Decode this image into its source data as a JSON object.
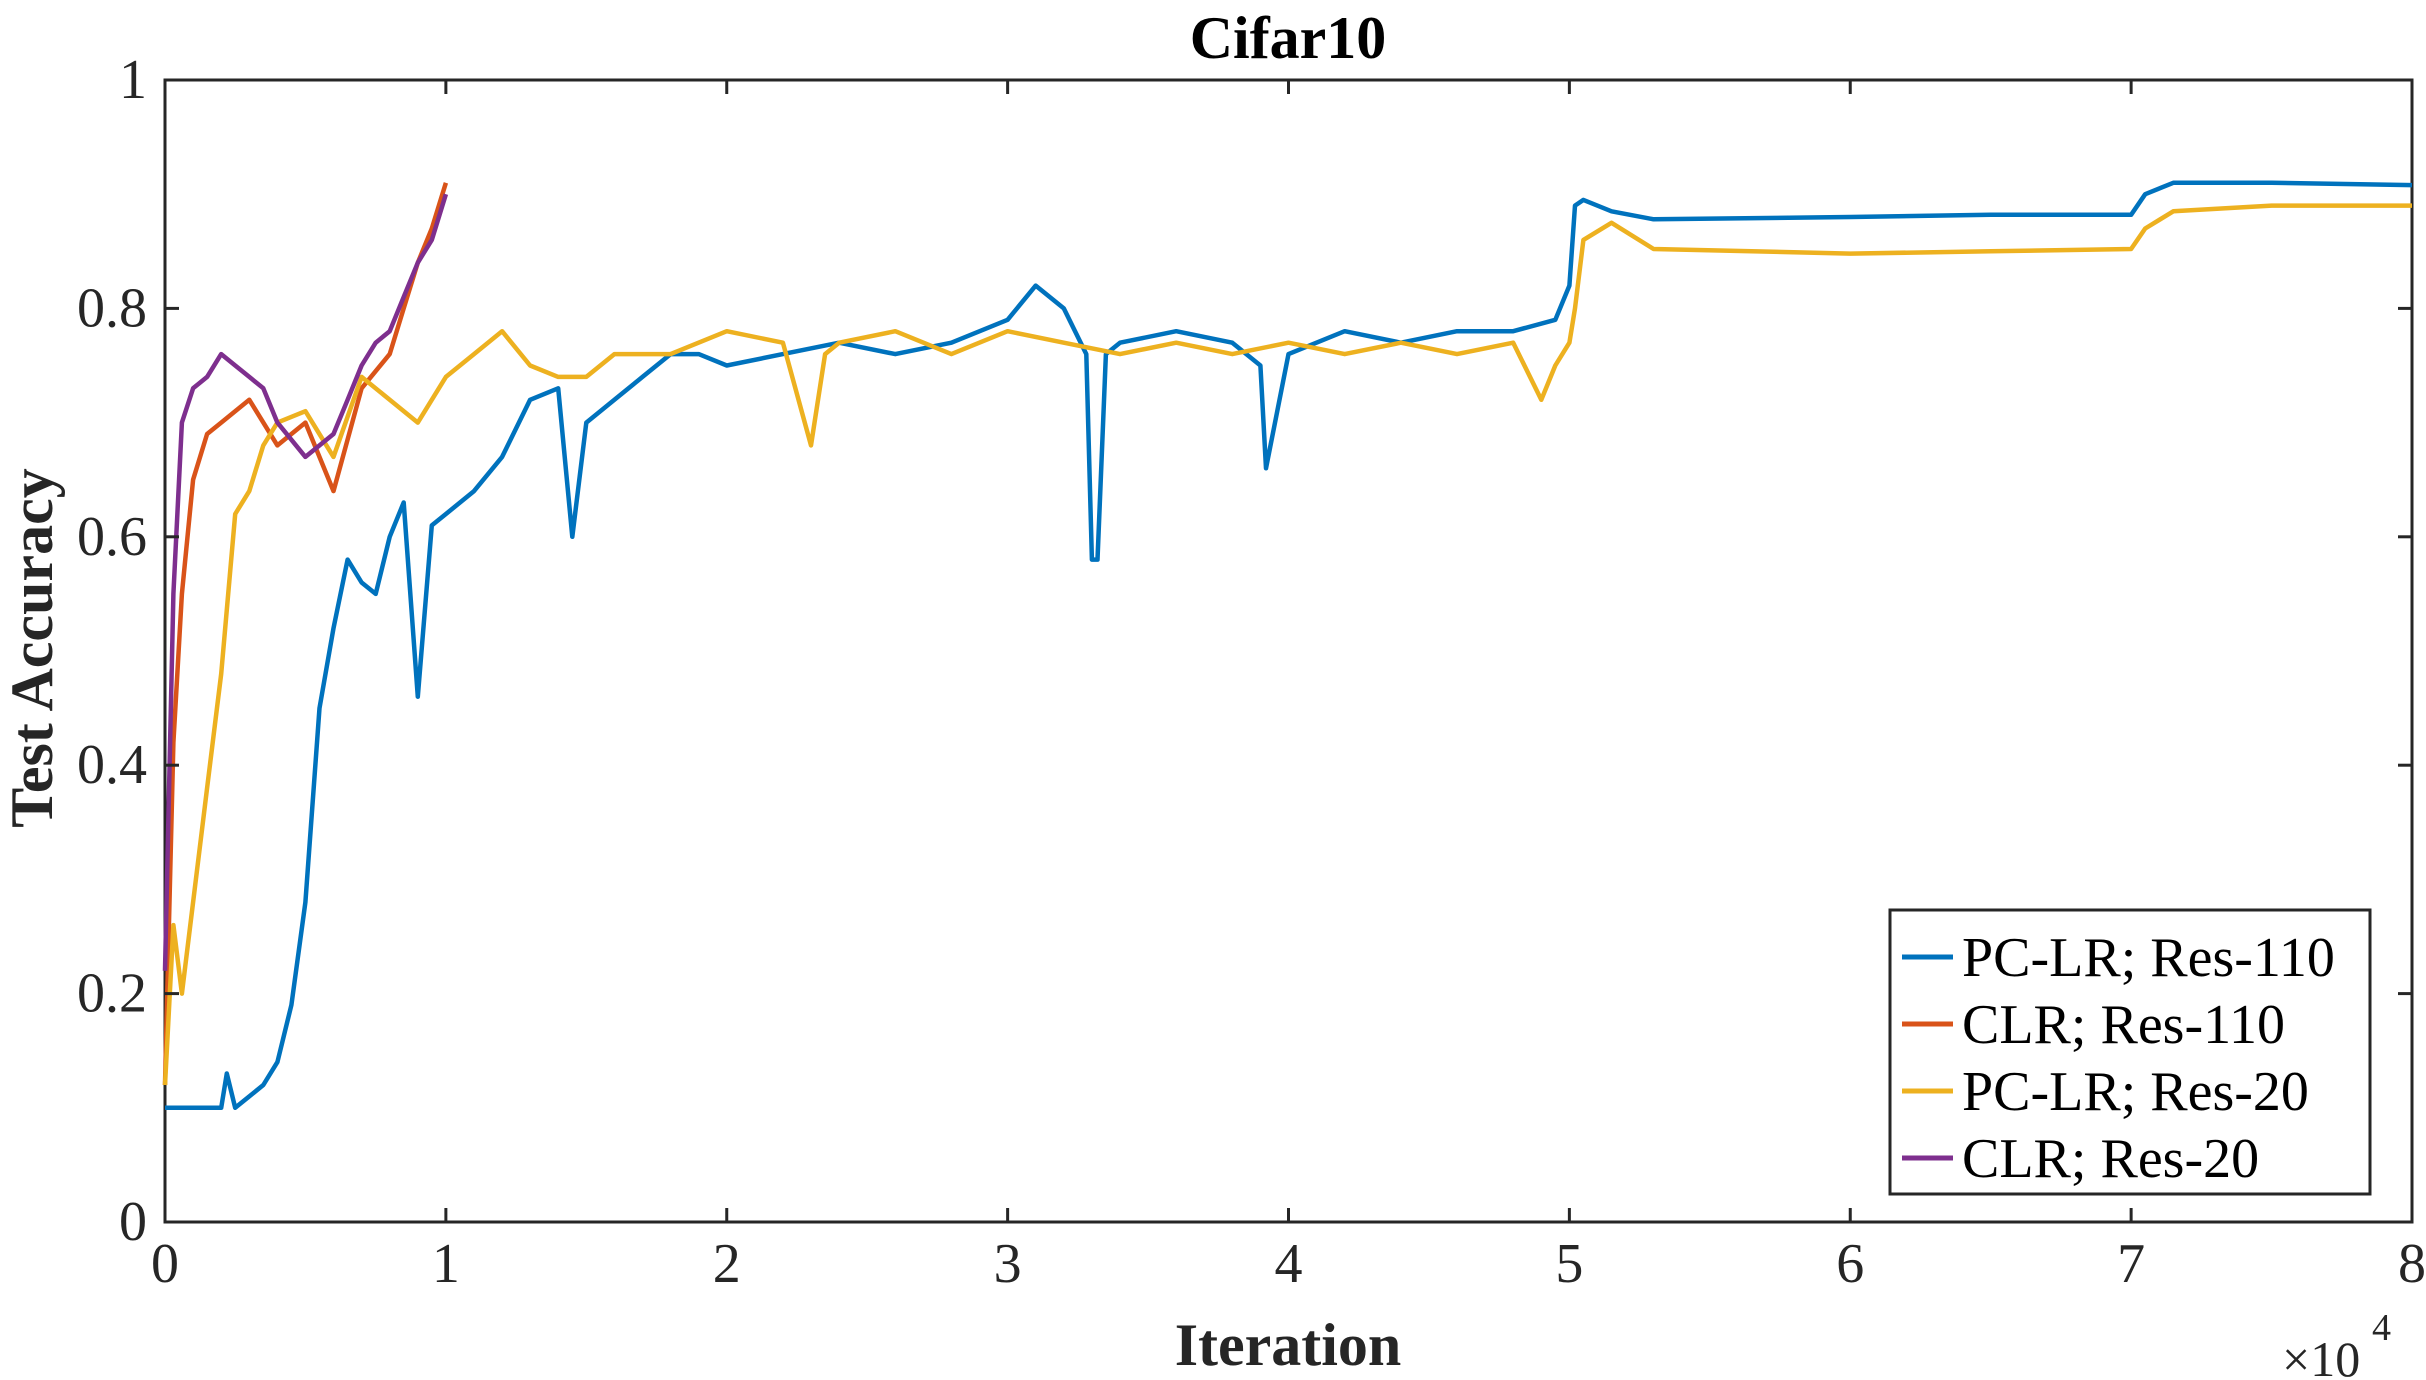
{
  "chart_data": {
    "type": "line",
    "title": "Cifar10",
    "xlabel": "Iteration",
    "ylabel": "Test Accuracy",
    "x_multiplier_label": "×10",
    "x_multiplier_exp": "4",
    "xlim": [
      0,
      8
    ],
    "ylim": [
      0,
      1
    ],
    "x_ticks": [
      0,
      1,
      2,
      3,
      4,
      5,
      6,
      7,
      8
    ],
    "x_tick_labels": [
      "0",
      "1",
      "2",
      "3",
      "4",
      "5",
      "6",
      "7",
      "8"
    ],
    "y_ticks": [
      0,
      0.2,
      0.4,
      0.6,
      0.8,
      1
    ],
    "y_tick_labels": [
      "0",
      "0.2",
      "0.4",
      "0.6",
      "0.8",
      "1"
    ],
    "grid": false,
    "legend_position": "bottom-right",
    "series": [
      {
        "name": "PC-LR; Res-110",
        "color": "#0072BD",
        "x": [
          0,
          0.1,
          0.2,
          0.22,
          0.25,
          0.3,
          0.35,
          0.4,
          0.45,
          0.5,
          0.55,
          0.6,
          0.65,
          0.7,
          0.75,
          0.8,
          0.85,
          0.9,
          0.95,
          1.0,
          1.1,
          1.2,
          1.3,
          1.4,
          1.45,
          1.5,
          1.6,
          1.7,
          1.8,
          1.9,
          2.0,
          2.2,
          2.4,
          2.6,
          2.8,
          3.0,
          3.1,
          3.2,
          3.28,
          3.3,
          3.32,
          3.35,
          3.4,
          3.6,
          3.8,
          3.9,
          3.92,
          4.0,
          4.2,
          4.4,
          4.6,
          4.8,
          4.95,
          5.0,
          5.02,
          5.05,
          5.15,
          5.3,
          6.0,
          6.5,
          7.0,
          7.05,
          7.15,
          7.5,
          8.0
        ],
        "y": [
          0.1,
          0.1,
          0.1,
          0.13,
          0.1,
          0.11,
          0.12,
          0.14,
          0.19,
          0.28,
          0.45,
          0.52,
          0.58,
          0.56,
          0.55,
          0.6,
          0.63,
          0.46,
          0.61,
          0.62,
          0.64,
          0.67,
          0.72,
          0.73,
          0.6,
          0.7,
          0.72,
          0.74,
          0.76,
          0.76,
          0.75,
          0.76,
          0.77,
          0.76,
          0.77,
          0.79,
          0.82,
          0.8,
          0.76,
          0.58,
          0.58,
          0.76,
          0.77,
          0.78,
          0.77,
          0.75,
          0.66,
          0.76,
          0.78,
          0.77,
          0.78,
          0.78,
          0.79,
          0.82,
          0.89,
          0.895,
          0.885,
          0.878,
          0.88,
          0.882,
          0.882,
          0.9,
          0.91,
          0.91,
          0.908
        ]
      },
      {
        "name": "CLR; Res-110",
        "color": "#D95319",
        "x": [
          0,
          0.03,
          0.06,
          0.1,
          0.15,
          0.2,
          0.3,
          0.4,
          0.5,
          0.6,
          0.7,
          0.8,
          0.85,
          0.9,
          0.95,
          1.0
        ],
        "y": [
          0.12,
          0.42,
          0.55,
          0.65,
          0.69,
          0.7,
          0.72,
          0.68,
          0.7,
          0.64,
          0.73,
          0.76,
          0.8,
          0.84,
          0.87,
          0.91
        ]
      },
      {
        "name": "PC-LR; Res-20",
        "color": "#EDB120",
        "x": [
          0,
          0.03,
          0.06,
          0.1,
          0.15,
          0.2,
          0.25,
          0.3,
          0.35,
          0.4,
          0.5,
          0.6,
          0.7,
          0.8,
          0.9,
          1.0,
          1.1,
          1.2,
          1.3,
          1.4,
          1.5,
          1.6,
          1.8,
          2.0,
          2.2,
          2.3,
          2.35,
          2.4,
          2.6,
          2.8,
          3.0,
          3.2,
          3.4,
          3.6,
          3.8,
          4.0,
          4.2,
          4.4,
          4.6,
          4.8,
          4.9,
          4.95,
          5.0,
          5.02,
          5.05,
          5.15,
          5.3,
          6.0,
          6.5,
          7.0,
          7.05,
          7.15,
          7.5,
          8.0
        ],
        "y": [
          0.12,
          0.26,
          0.2,
          0.28,
          0.38,
          0.48,
          0.62,
          0.64,
          0.68,
          0.7,
          0.71,
          0.67,
          0.74,
          0.72,
          0.7,
          0.74,
          0.76,
          0.78,
          0.75,
          0.74,
          0.74,
          0.76,
          0.76,
          0.78,
          0.77,
          0.68,
          0.76,
          0.77,
          0.78,
          0.76,
          0.78,
          0.77,
          0.76,
          0.77,
          0.76,
          0.77,
          0.76,
          0.77,
          0.76,
          0.77,
          0.72,
          0.75,
          0.77,
          0.8,
          0.86,
          0.875,
          0.852,
          0.848,
          0.85,
          0.852,
          0.87,
          0.885,
          0.89,
          0.89
        ]
      },
      {
        "name": "CLR; Res-20",
        "color": "#7E2F8E",
        "x": [
          0,
          0.03,
          0.06,
          0.1,
          0.15,
          0.2,
          0.25,
          0.3,
          0.35,
          0.4,
          0.5,
          0.6,
          0.65,
          0.7,
          0.75,
          0.8,
          0.85,
          0.9,
          0.95,
          1.0
        ],
        "y": [
          0.22,
          0.55,
          0.7,
          0.73,
          0.74,
          0.76,
          0.75,
          0.74,
          0.73,
          0.7,
          0.67,
          0.69,
          0.72,
          0.75,
          0.77,
          0.78,
          0.81,
          0.84,
          0.86,
          0.9
        ]
      }
    ]
  }
}
